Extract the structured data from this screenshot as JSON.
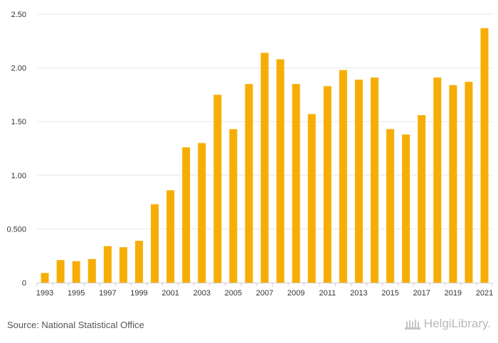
{
  "chart_data": {
    "type": "bar",
    "title": "",
    "xlabel": "",
    "ylabel": "",
    "categories": [
      "1993",
      "1994",
      "1995",
      "1996",
      "1997",
      "1998",
      "1999",
      "2000",
      "2001",
      "2002",
      "2003",
      "2004",
      "2005",
      "2006",
      "2007",
      "2008",
      "2009",
      "2010",
      "2011",
      "2012",
      "2013",
      "2014",
      "2015",
      "2016",
      "2017",
      "2018",
      "2019",
      "2020",
      "2021"
    ],
    "values": [
      0.09,
      0.21,
      0.2,
      0.22,
      0.34,
      0.33,
      0.39,
      0.73,
      0.86,
      1.26,
      1.3,
      1.75,
      1.43,
      1.85,
      2.14,
      2.08,
      1.85,
      1.57,
      1.83,
      1.98,
      1.89,
      1.91,
      1.43,
      1.38,
      1.56,
      1.91,
      1.84,
      1.87,
      2.37
    ],
    "x_tick_labels": [
      "1993",
      "1995",
      "1997",
      "1999",
      "2001",
      "2003",
      "2005",
      "2007",
      "2009",
      "2011",
      "2013",
      "2015",
      "2017",
      "2019",
      "2021"
    ],
    "y_ticks": [
      0,
      0.5,
      1.0,
      1.5,
      2.0,
      2.5
    ],
    "y_tick_labels": [
      "0",
      "0.500",
      "1.00",
      "1.50",
      "2.00",
      "2.50"
    ],
    "ylim": [
      0,
      2.5
    ],
    "grid": true,
    "legend": "none",
    "bar_color": "#F6AE06"
  },
  "footer": {
    "source": "Source: National Statistical Office",
    "brand": "HelgiLibrary."
  }
}
